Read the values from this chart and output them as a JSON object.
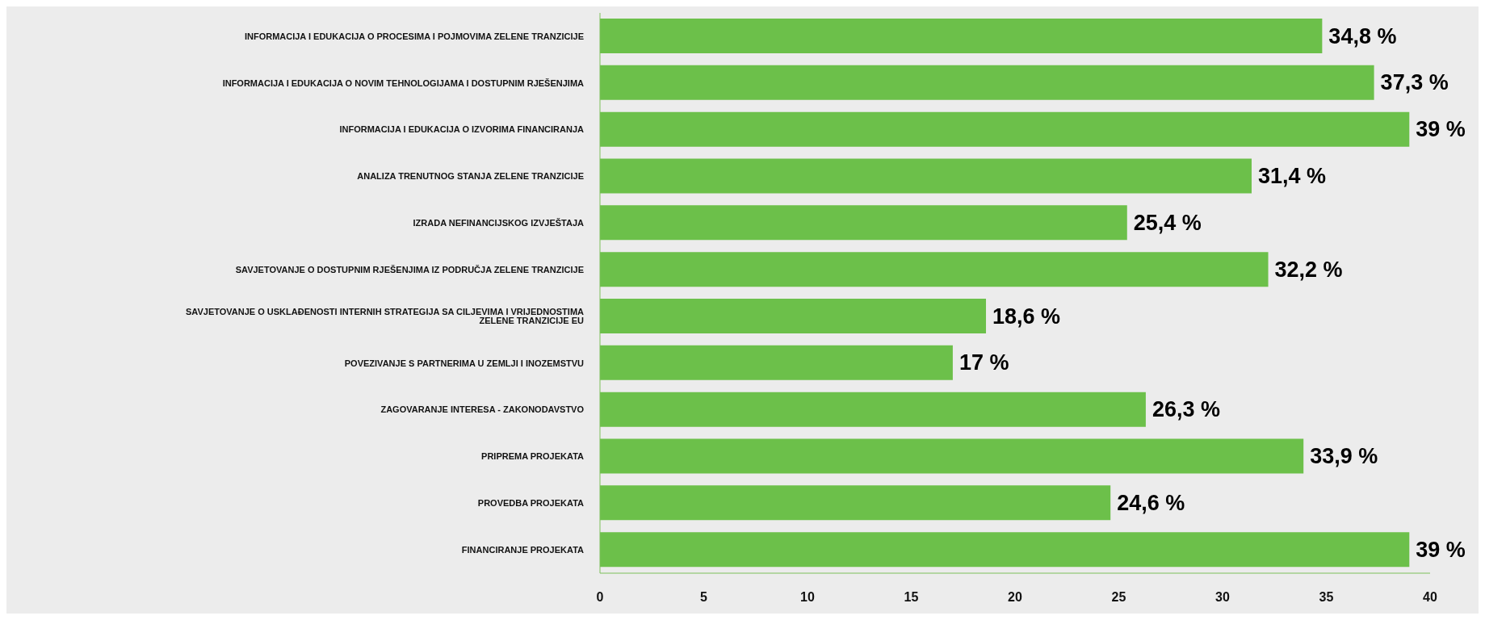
{
  "chart_data": {
    "type": "bar",
    "orientation": "horizontal",
    "categories": [
      "INFORMACIJA I EDUKACIJA O PROCESIMA I POJMOVIMA ZELENE TRANZICIJE",
      "INFORMACIJA I EDUKACIJA O NOVIM TEHNOLOGIJAMA I DOSTUPNIM RJEŠENJIMA",
      "INFORMACIJA I EDUKACIJA O IZVORIMA FINANCIRANJA",
      "ANALIZA TRENUTNOG STANJA ZELENE TRANZICIJE",
      "IZRADA NEFINANCIJSKOG IZVJEŠTAJA",
      "SAVJETOVANJE O DOSTUPNIM RJEŠENJIMA IZ PODRUČJA ZELENE TRANZICIJE",
      "SAVJETOVANJE O USKLAĐENOSTI INTERNIH STRATEGIJA SA CILJEVIMA I VRIJEDNOSTIMA ZELENE TRANZICIJE EU",
      "POVEZIVANJE S PARTNERIMA U ZEMLJI I INOZEMSTVU",
      "ZAGOVARANJE INTERESA - ZAKONODAVSTVO",
      "PRIPREMA PROJEKATA",
      "PROVEDBA PROJEKATA",
      "FINANCIRANJE PROJEKATA"
    ],
    "values": [
      34.8,
      37.3,
      39,
      31.4,
      25.4,
      32.2,
      18.6,
      17,
      26.3,
      33.9,
      24.6,
      39
    ],
    "value_labels": [
      "34,8 %",
      "37,3 %",
      "39 %",
      "31,4 %",
      "25,4 %",
      "32,2 %",
      "18,6 %",
      "17 %",
      "26,3 %",
      "33,9 %",
      "24,6 %",
      "39 %"
    ],
    "color": "#6cc04a",
    "xlim": [
      0,
      40
    ],
    "xticks": [
      0,
      5,
      10,
      15,
      20,
      25,
      30,
      35,
      40
    ],
    "grid": false,
    "legend": false
  }
}
